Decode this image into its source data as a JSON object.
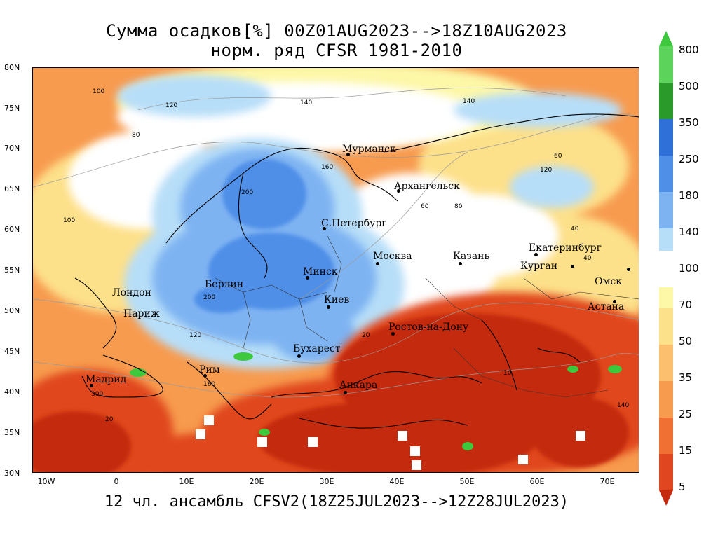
{
  "title": {
    "line1": "Сумма осадков[%] 00Z01AUG2023-->18Z10AUG2023",
    "line2": "норм. ряд CFSR 1981-2010"
  },
  "footer": "12 чл. ансамбль CFSV2(18Z25JUL2023-->12Z28JUL2023)",
  "lat_labels": [
    "80N",
    "75N",
    "70N",
    "65N",
    "60N",
    "55N",
    "50N",
    "45N",
    "40N",
    "35N",
    "30N"
  ],
  "lon_labels": [
    "10W",
    "0",
    "10E",
    "20E",
    "30E",
    "40E",
    "50E",
    "60E",
    "70E"
  ],
  "cities": [
    {
      "name": "Мурманск"
    },
    {
      "name": "Архангельск"
    },
    {
      "name": "С.Петербург"
    },
    {
      "name": "Москва"
    },
    {
      "name": "Казань"
    },
    {
      "name": "Екатеринбург"
    },
    {
      "name": "Курган"
    },
    {
      "name": "Омск"
    },
    {
      "name": "Астана"
    },
    {
      "name": "Минск"
    },
    {
      "name": "Киев"
    },
    {
      "name": "Берлин"
    },
    {
      "name": "Лондон"
    },
    {
      "name": "Париж"
    },
    {
      "name": "Ростов-на-Дону"
    },
    {
      "name": "Бухарест"
    },
    {
      "name": "Анкара"
    },
    {
      "name": "Рим"
    },
    {
      "name": "Мадрид"
    }
  ],
  "contour_labels": [
    "100",
    "120",
    "140",
    "160",
    "200",
    "80",
    "60",
    "40",
    "20",
    "10",
    "120",
    "140",
    "100",
    "60",
    "80",
    "40",
    "120",
    "160",
    "200",
    "300",
    "20",
    "140"
  ],
  "legend": {
    "upper": {
      "labels": [
        "800",
        "500",
        "350",
        "250",
        "180",
        "140"
      ],
      "colors": [
        "#3ec83e",
        "#5cd45c",
        "#2a9a2a",
        "#2e6fd8",
        "#4f8fe8",
        "#7eb3f2",
        "#b7def8"
      ]
    },
    "middle_label": "100",
    "lower": {
      "labels": [
        "70",
        "50",
        "35",
        "25",
        "15",
        "5"
      ],
      "colors": [
        "#fdf7a8",
        "#fde08a",
        "#fbbf6e",
        "#f79b4f",
        "#f06f33",
        "#e0461f",
        "#c4290f"
      ]
    }
  },
  "colors": {
    "dry_dark": "#c4290f",
    "dry_mid": "#e0461f",
    "dry_light": "#f79b4f",
    "dry_pale": "#fde08a",
    "neutral": "#ffffff",
    "wet_pale": "#b7def8",
    "wet_mid": "#7eb3f2",
    "wet_dark": "#4f8fe8",
    "extreme": "#3ec83e"
  }
}
